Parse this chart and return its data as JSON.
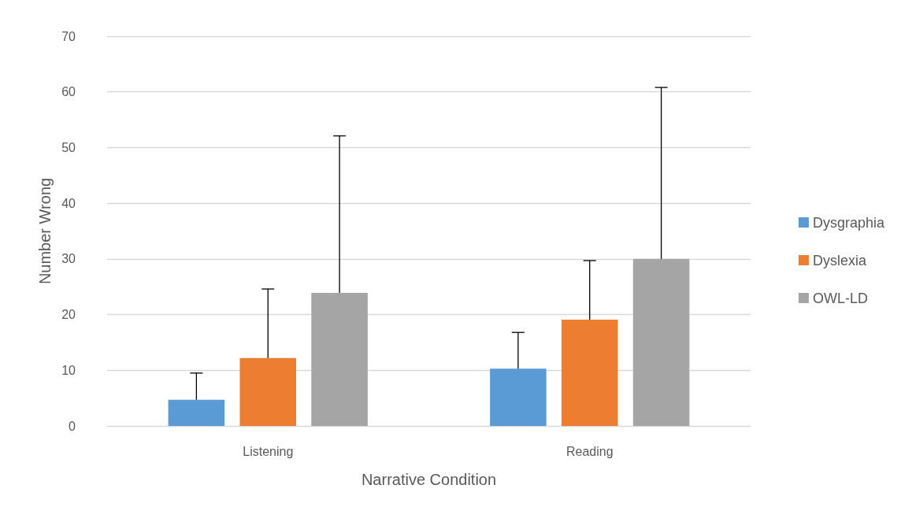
{
  "chart_data": {
    "type": "bar",
    "xlabel": "Narrative Condition",
    "ylabel": "Number Wrong",
    "categories": [
      "Listening",
      "Reading"
    ],
    "series": [
      {
        "name": "Dysgraphia",
        "color": "#5b9bd5",
        "values": [
          4.7,
          10.3
        ],
        "errors": [
          [
            4.7,
            9.5
          ],
          [
            10.3,
            16.8
          ]
        ]
      },
      {
        "name": "Dyslexia",
        "color": "#ed7d31",
        "values": [
          12.2,
          19.1
        ],
        "errors": [
          [
            12.2,
            24.6
          ],
          [
            19.1,
            29.7
          ]
        ]
      },
      {
        "name": "OWL-LD",
        "color": "#a5a5a5",
        "values": [
          23.9,
          30.0
        ],
        "errors": [
          [
            23.9,
            52.1
          ],
          [
            30.0,
            60.8
          ]
        ]
      }
    ],
    "ylim": [
      0,
      70
    ],
    "yticks": [
      0,
      10,
      20,
      30,
      40,
      50,
      60,
      70
    ],
    "grid": "y",
    "legend": "right"
  }
}
